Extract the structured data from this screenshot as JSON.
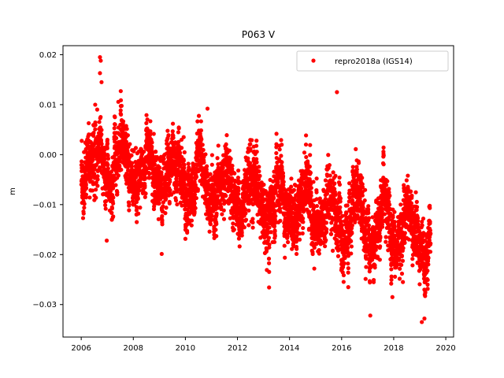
{
  "chart_data": {
    "type": "scatter",
    "title": "P063 V",
    "xlabel": "",
    "ylabel": "m",
    "xlim": [
      2005.3,
      2020.3
    ],
    "ylim": [
      -0.0365,
      0.0218
    ],
    "x_ticks": [
      2006,
      2008,
      2010,
      2012,
      2014,
      2016,
      2018,
      2020
    ],
    "x_tick_labels": [
      "2006",
      "2008",
      "2010",
      "2012",
      "2014",
      "2016",
      "2018",
      "2020"
    ],
    "y_ticks": [
      0.02,
      0.01,
      0.0,
      -0.01,
      -0.02,
      -0.03
    ],
    "y_tick_labels": [
      "0.02",
      "0.01",
      "0.00",
      "−0.01",
      "−0.02",
      "−0.03"
    ],
    "grid": false,
    "legend_position": "top-right",
    "series": [
      {
        "name": "repro2018a (IGS14)",
        "color": "#ff0000",
        "marker": "circle",
        "x_range": [
          2006.0,
          2019.42
        ],
        "trend": {
          "slope": -0.00125,
          "intercept_at_2006": 0.0
        },
        "seasonal_amplitude": 0.004,
        "noise_std": 0.0035,
        "points_per_year": 365,
        "notable_points": [
          {
            "x": 2006.72,
            "y": 0.0195
          },
          {
            "x": 2006.75,
            "y": 0.0188
          },
          {
            "x": 2006.72,
            "y": 0.0163
          },
          {
            "x": 2006.78,
            "y": 0.0145
          },
          {
            "x": 2010.85,
            "y": 0.0092
          },
          {
            "x": 2015.82,
            "y": 0.0125
          },
          {
            "x": 2006.98,
            "y": -0.0172
          },
          {
            "x": 2017.1,
            "y": -0.0322
          },
          {
            "x": 2019.08,
            "y": -0.0335
          },
          {
            "x": 2019.18,
            "y": -0.0328
          },
          {
            "x": 2014.95,
            "y": -0.0228
          },
          {
            "x": 2017.95,
            "y": -0.0285
          }
        ]
      }
    ]
  }
}
